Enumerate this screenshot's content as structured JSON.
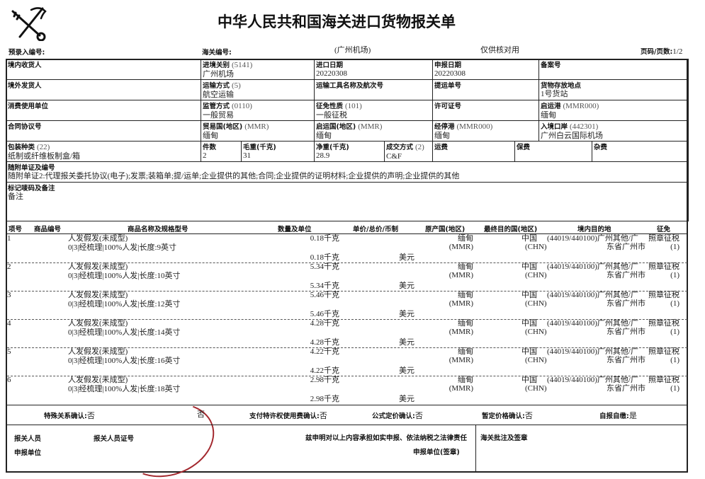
{
  "header": {
    "title": "中华人民共和国海关进口货物报关单",
    "logo": "china-customs-emblem",
    "pre_entry_label": "预录入编号:",
    "customs_no_label": "海关编号:",
    "customs_office": "(广州机场)",
    "check_note": "仅供核对用",
    "page_label": "页码/页数:",
    "page_value": "1/2"
  },
  "fields": {
    "consignee": {
      "label": "境内收货人",
      "value": ""
    },
    "entry_office": {
      "label": "进境关别",
      "code": "(5141)",
      "value": "广州机场"
    },
    "import_date": {
      "label": "进口日期",
      "value": "20220308"
    },
    "declare_date": {
      "label": "申报日期",
      "value": "20220308"
    },
    "record_no": {
      "label": "备案号",
      "value": ""
    },
    "overseas_shipper": {
      "label": "境外发货人",
      "value": ""
    },
    "transport_mode": {
      "label": "运输方式",
      "code": "(5)",
      "value": "航空运输"
    },
    "vessel": {
      "label": "运输工具名称及航次号",
      "value": ""
    },
    "bill_no": {
      "label": "提运单号",
      "value": ""
    },
    "storage_place": {
      "label": "货物存放地点",
      "value": "1号货站"
    },
    "consumer": {
      "label": "消费使用单位",
      "value": ""
    },
    "supervision": {
      "label": "监管方式",
      "code": "(0110)",
      "value": "一般贸易"
    },
    "levy_nature": {
      "label": "征免性质",
      "code": "(101)",
      "value": "一般征税"
    },
    "license": {
      "label": "许可证号",
      "value": ""
    },
    "departure_port": {
      "label": "启运港",
      "code": "(MMR000)",
      "value": "缅甸"
    },
    "contract": {
      "label": "合同协议号",
      "value": ""
    },
    "trade_country": {
      "label": "贸易国(地区)",
      "code": "(MMR)",
      "value": "缅甸"
    },
    "origin_country": {
      "label": "启运国(地区)",
      "code": "(MMR)",
      "value": "缅甸"
    },
    "transit_port": {
      "label": "经停港",
      "code": "(MMR000)",
      "value": "缅甸"
    },
    "entry_port": {
      "label": "入境口岸",
      "code": "(442301)",
      "value": "广州白云国际机场"
    },
    "package": {
      "label": "包装种类",
      "code": "(22)",
      "value": "纸制或纤维板制盒/箱"
    },
    "pieces": {
      "label": "件数",
      "value": "2"
    },
    "gross": {
      "label": "毛重(千克)",
      "value": "31"
    },
    "net": {
      "label": "净重(千克)",
      "value": "28.9"
    },
    "terms": {
      "label": "成交方式",
      "code": "(2)",
      "value": "C&F"
    },
    "freight": {
      "label": "运费",
      "value": ""
    },
    "insurance": {
      "label": "保费",
      "value": ""
    },
    "misc": {
      "label": "杂费",
      "value": ""
    },
    "docs": {
      "label": "随附单证及编号",
      "value": "随附单证2:代理报关委托协议(电子);发票;装箱单;提/运单;企业提供的其他;合同;企业提供的证明材料;企业提供的声明;企业提供的其他"
    },
    "marks": {
      "label": "标记唛码及备注",
      "value": "备注"
    }
  },
  "items_header": [
    "项号",
    "商品编号",
    "商品名称及规格型号",
    "数量及单位",
    "单价/总价/币制",
    "原产国(地区)",
    "最终目的国(地区)",
    "境内目的地",
    "征免"
  ],
  "items": [
    {
      "no": "1",
      "name": "人发假发(未成型)",
      "spec": "0|3|经梳理|100%人发|长度:9英寸",
      "qty": "0.18千克",
      "qty2": "0.18千克",
      "currency": "美元",
      "origin": "缅甸",
      "origin_code": "(MMR)",
      "dest": "中国",
      "dest_code": "(CHN)",
      "domestic": "(44019/440100)广州其他/广",
      "domestic2": "东省广州市",
      "levy": "照章征税",
      "levy2": "(1)"
    },
    {
      "no": "2",
      "name": "人发假发(未成型)",
      "spec": "0|3|经梳理|100%人发|长度:10英寸",
      "qty": "5.34千克",
      "qty2": "5.34千克",
      "currency": "美元",
      "origin": "缅甸",
      "origin_code": "(MMR)",
      "dest": "中国",
      "dest_code": "(CHN)",
      "domestic": "(44019/440100)广州其他/广",
      "domestic2": "东省广州市",
      "levy": "照章征税",
      "levy2": "(1)"
    },
    {
      "no": "3",
      "name": "人发假发(未成型)",
      "spec": "0|3|经梳理|100%人发|长度:12英寸",
      "qty": "5.46千克",
      "qty2": "5.46千克",
      "currency": "美元",
      "origin": "缅甸",
      "origin_code": "(MMR)",
      "dest": "中国",
      "dest_code": "(CHN)",
      "domestic": "(44019/440100)广州其他/广",
      "domestic2": "东省广州市",
      "levy": "照章征税",
      "levy2": "(1)"
    },
    {
      "no": "4",
      "name": "人发假发(未成型)",
      "spec": "0|3|经梳理|100%人发|长度:14英寸",
      "qty": "4.28千克",
      "qty2": "4.28千克",
      "currency": "美元",
      "origin": "缅甸",
      "origin_code": "(MMR)",
      "dest": "中国",
      "dest_code": "(CHN)",
      "domestic": "(44019/440100)广州其他/广",
      "domestic2": "东省广州市",
      "levy": "照章征税",
      "levy2": "(1)"
    },
    {
      "no": "5",
      "name": "人发假发(未成型)",
      "spec": "0|3|经梳理|100%人发|长度:16英寸",
      "qty": "4.22千克",
      "qty2": "4.22千克",
      "currency": "美元",
      "origin": "缅甸",
      "origin_code": "(MMR)",
      "dest": "中国",
      "dest_code": "(CHN)",
      "domestic": "(44019/440100)广州其他/广",
      "domestic2": "东省广州市",
      "levy": "照章征税",
      "levy2": "(1)"
    },
    {
      "no": "6",
      "name": "人发假发(未成型)",
      "spec": "0|3|经梳理|100%人发|长度:18英寸",
      "qty": "2.98千克",
      "qty2": "2.98千克",
      "currency": "美元",
      "origin": "缅甸",
      "origin_code": "(MMR)",
      "dest": "中国",
      "dest_code": "(CHN)",
      "domestic": "(44019/440100)广州其他/广",
      "domestic2": "东省广州市",
      "levy": "照章征税",
      "levy2": "(1)"
    }
  ],
  "confirm": {
    "special": {
      "label": "特殊关系确认:",
      "value": "否"
    },
    "price": {
      "value": "否"
    },
    "royalty": {
      "label": "支付特许权使用费确认:",
      "value": "否"
    },
    "formula": {
      "label": "公式定价确认:",
      "value": "否"
    },
    "provisional": {
      "label": "暂定价格确认:",
      "value": "否"
    },
    "self": {
      "label": "自报自缴:",
      "value": "是"
    }
  },
  "footer": {
    "declarant": "报关人员",
    "declarant_cert": "报关人员证号",
    "statement": "兹申明对以上内容承担如实申报、依法纳税之法律责任",
    "unit": "申报单位",
    "unit_seal": "申报单位(签章)",
    "customs_note": "海关批注及签章"
  },
  "colors": {
    "stamp": "#a3282e",
    "line": "#222222"
  }
}
